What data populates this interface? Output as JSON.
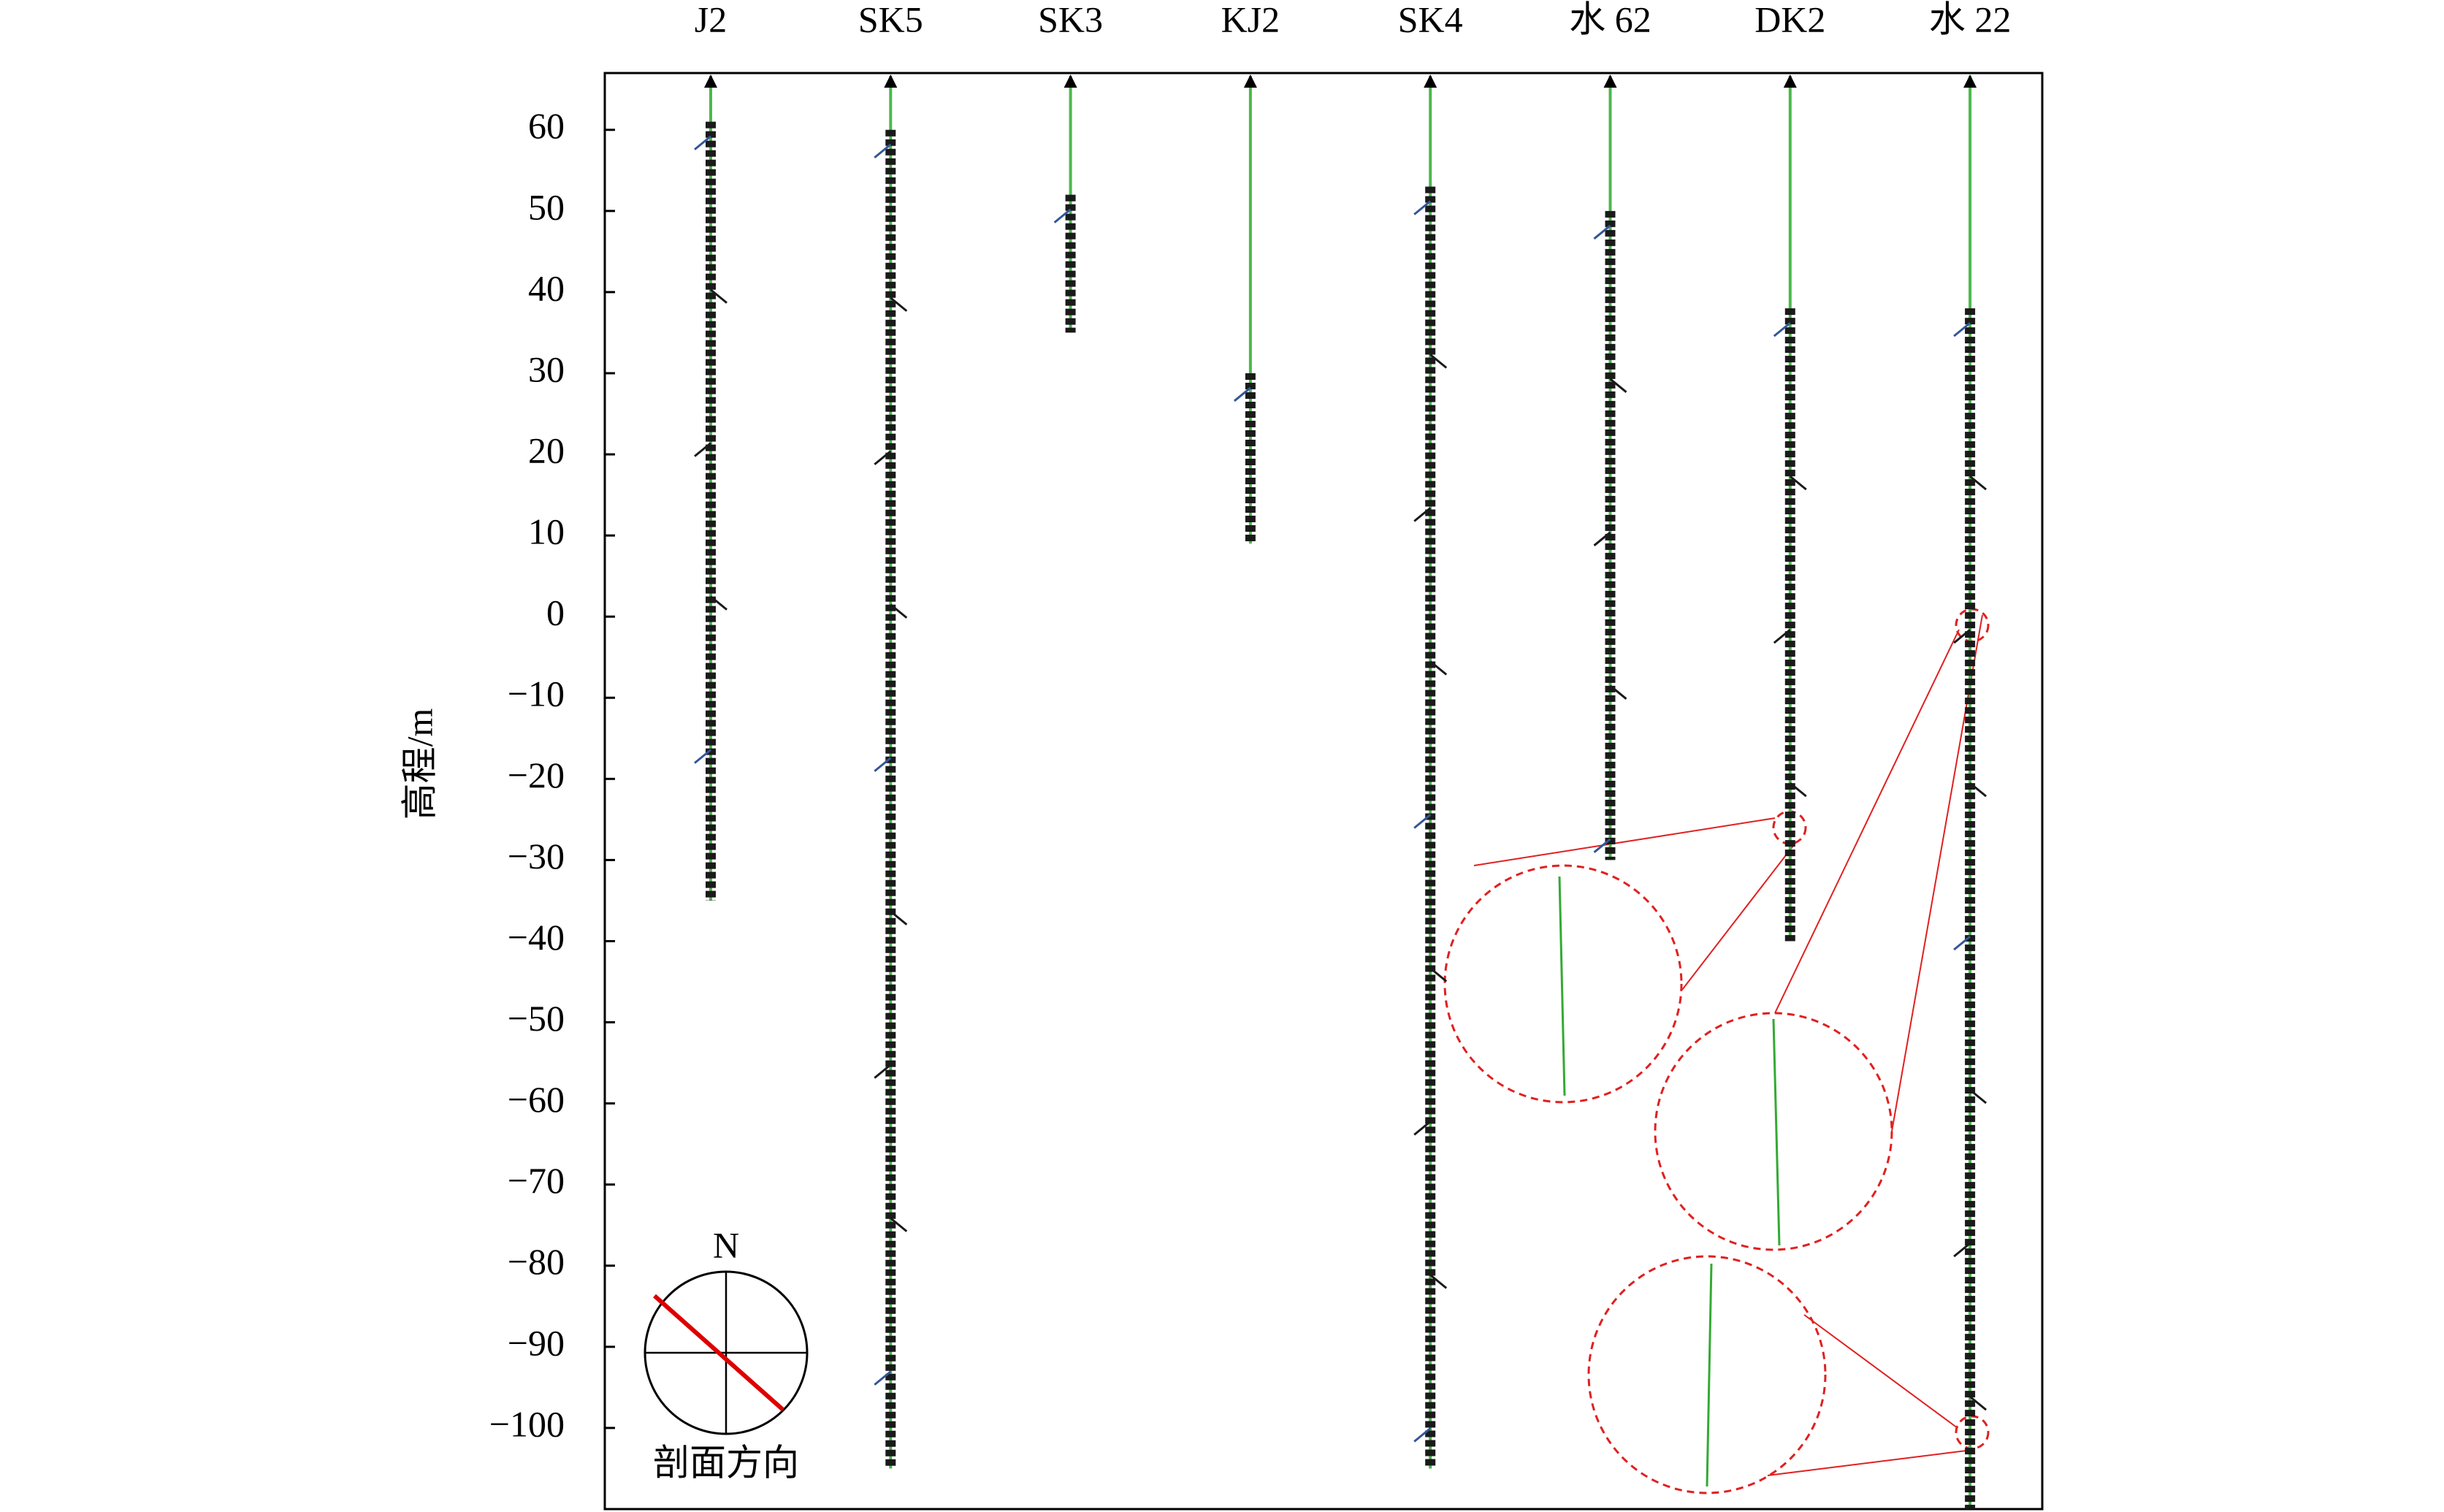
{
  "chart_data": {
    "type": "borehole",
    "ylabel": "高程/m",
    "categories": [
      "J2",
      "SK5",
      "SK3",
      "KJ2",
      "SK4",
      "水 62",
      "DK2",
      "水 22"
    ],
    "top": [
      61,
      60,
      52,
      30,
      53,
      50,
      38,
      38
    ],
    "bottom": [
      -35,
      -105,
      35,
      9,
      -105,
      -30,
      -40,
      -110
    ],
    "ylim": [
      -110,
      67
    ],
    "yticks": [
      60,
      50,
      40,
      30,
      20,
      10,
      0,
      {
        "value": -10,
        "label": "−10"
      },
      {
        "value": -20,
        "label": "−20"
      },
      {
        "value": -30,
        "label": "−30"
      },
      {
        "value": -40,
        "label": "−40"
      },
      {
        "value": -50,
        "label": "−50"
      },
      {
        "value": -60,
        "label": "−60"
      },
      {
        "value": -70,
        "label": "−70"
      },
      {
        "value": -80,
        "label": "−80"
      },
      {
        "value": -90,
        "label": "−90"
      },
      {
        "value": -100,
        "label": "−100"
      }
    ],
    "compass_north": "N",
    "compass_label": "剖面方向"
  }
}
